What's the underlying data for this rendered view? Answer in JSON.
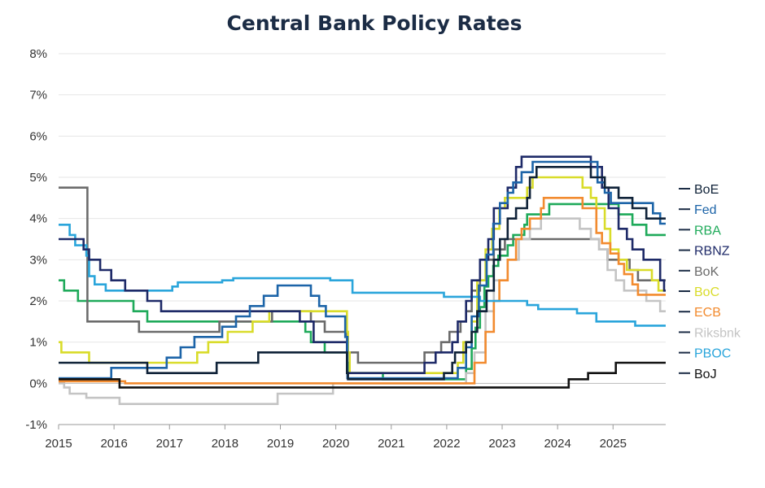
{
  "chart_data": {
    "type": "line",
    "title": "Central Bank Policy Rates",
    "xlabel": "",
    "ylabel": "",
    "xlim": [
      2015.0,
      2025.95
    ],
    "ylim": [
      -1,
      8
    ],
    "yticks": [
      {
        "value": -1,
        "label": "-1%"
      },
      {
        "value": 0,
        "label": "0%"
      },
      {
        "value": 1,
        "label": "1%"
      },
      {
        "value": 2,
        "label": "2%"
      },
      {
        "value": 3,
        "label": "3%"
      },
      {
        "value": 4,
        "label": "4%"
      },
      {
        "value": 5,
        "label": "5%"
      },
      {
        "value": 6,
        "label": "6%"
      },
      {
        "value": 7,
        "label": "7%"
      },
      {
        "value": 8,
        "label": "8%"
      }
    ],
    "xticks": [
      {
        "value": 2015,
        "label": "2015"
      },
      {
        "value": 2016,
        "label": "2016"
      },
      {
        "value": 2017,
        "label": "2017"
      },
      {
        "value": 2018,
        "label": "2018"
      },
      {
        "value": 2019,
        "label": "2019"
      },
      {
        "value": 2020,
        "label": "2020"
      },
      {
        "value": 2021,
        "label": "2021"
      },
      {
        "value": 2022,
        "label": "2022"
      },
      {
        "value": 2023,
        "label": "2023"
      },
      {
        "value": 2024,
        "label": "2024"
      },
      {
        "value": 2025,
        "label": "2025"
      }
    ],
    "grid": "horizontal",
    "legend_position": "right",
    "step": true,
    "series": [
      {
        "name": "BoE",
        "color": "#0f2238",
        "points": [
          [
            2015,
            0.5
          ],
          [
            2016.6,
            0.25
          ],
          [
            2017.85,
            0.5
          ],
          [
            2018.6,
            0.75
          ],
          [
            2020.2,
            0.25
          ],
          [
            2020.22,
            0.1
          ],
          [
            2021.95,
            0.25
          ],
          [
            2022.1,
            0.5
          ],
          [
            2022.15,
            0.75
          ],
          [
            2022.35,
            1.0
          ],
          [
            2022.45,
            1.25
          ],
          [
            2022.55,
            1.75
          ],
          [
            2022.72,
            2.25
          ],
          [
            2022.85,
            3.0
          ],
          [
            2022.96,
            3.5
          ],
          [
            2023.1,
            4.0
          ],
          [
            2023.25,
            4.25
          ],
          [
            2023.45,
            4.5
          ],
          [
            2023.5,
            5.0
          ],
          [
            2023.62,
            5.25
          ],
          [
            2024.6,
            5.0
          ],
          [
            2024.85,
            4.75
          ],
          [
            2025.1,
            4.5
          ],
          [
            2025.35,
            4.25
          ],
          [
            2025.6,
            4.0
          ],
          [
            2025.95,
            4.0
          ]
        ]
      },
      {
        "name": "Fed",
        "color": "#1c64a8",
        "points": [
          [
            2015,
            0.125
          ],
          [
            2015.95,
            0.375
          ],
          [
            2016.95,
            0.625
          ],
          [
            2017.2,
            0.875
          ],
          [
            2017.45,
            1.125
          ],
          [
            2017.95,
            1.375
          ],
          [
            2018.2,
            1.625
          ],
          [
            2018.45,
            1.875
          ],
          [
            2018.7,
            2.125
          ],
          [
            2018.95,
            2.375
          ],
          [
            2019.55,
            2.125
          ],
          [
            2019.7,
            1.875
          ],
          [
            2019.82,
            1.625
          ],
          [
            2020.17,
            1.125
          ],
          [
            2020.21,
            0.125
          ],
          [
            2022.2,
            0.375
          ],
          [
            2022.35,
            0.875
          ],
          [
            2022.45,
            1.625
          ],
          [
            2022.58,
            2.375
          ],
          [
            2022.72,
            3.125
          ],
          [
            2022.84,
            3.875
          ],
          [
            2022.96,
            4.375
          ],
          [
            2023.1,
            4.625
          ],
          [
            2023.2,
            4.875
          ],
          [
            2023.35,
            5.125
          ],
          [
            2023.55,
            5.375
          ],
          [
            2024.72,
            4.875
          ],
          [
            2024.85,
            4.625
          ],
          [
            2024.96,
            4.375
          ],
          [
            2025.72,
            4.125
          ],
          [
            2025.85,
            3.875
          ],
          [
            2025.95,
            3.875
          ]
        ]
      },
      {
        "name": "RBA",
        "color": "#1faa5a",
        "points": [
          [
            2015,
            2.5
          ],
          [
            2015.1,
            2.25
          ],
          [
            2015.35,
            2.0
          ],
          [
            2016.35,
            1.75
          ],
          [
            2016.6,
            1.5
          ],
          [
            2019.45,
            1.25
          ],
          [
            2019.55,
            1.0
          ],
          [
            2019.8,
            0.75
          ],
          [
            2020.2,
            0.5
          ],
          [
            2020.22,
            0.25
          ],
          [
            2020.85,
            0.1
          ],
          [
            2022.35,
            0.35
          ],
          [
            2022.45,
            0.85
          ],
          [
            2022.52,
            1.35
          ],
          [
            2022.6,
            1.85
          ],
          [
            2022.68,
            2.35
          ],
          [
            2022.75,
            2.6
          ],
          [
            2022.84,
            2.85
          ],
          [
            2022.93,
            3.1
          ],
          [
            2023.1,
            3.35
          ],
          [
            2023.2,
            3.6
          ],
          [
            2023.4,
            3.85
          ],
          [
            2023.45,
            4.1
          ],
          [
            2023.85,
            4.35
          ],
          [
            2025.1,
            4.1
          ],
          [
            2025.35,
            3.85
          ],
          [
            2025.6,
            3.6
          ],
          [
            2025.95,
            3.6
          ]
        ]
      },
      {
        "name": "RBNZ",
        "color": "#1e2a68",
        "points": [
          [
            2015,
            3.5
          ],
          [
            2015.45,
            3.25
          ],
          [
            2015.55,
            3.0
          ],
          [
            2015.75,
            2.75
          ],
          [
            2015.95,
            2.5
          ],
          [
            2016.2,
            2.25
          ],
          [
            2016.6,
            2.0
          ],
          [
            2016.85,
            1.75
          ],
          [
            2019.35,
            1.5
          ],
          [
            2019.6,
            1.0
          ],
          [
            2020.2,
            0.25
          ],
          [
            2021.6,
            0.5
          ],
          [
            2021.8,
            0.75
          ],
          [
            2022.1,
            1.0
          ],
          [
            2022.2,
            1.5
          ],
          [
            2022.35,
            2.0
          ],
          [
            2022.45,
            2.5
          ],
          [
            2022.6,
            3.0
          ],
          [
            2022.75,
            3.5
          ],
          [
            2022.85,
            4.25
          ],
          [
            2023.1,
            4.75
          ],
          [
            2023.25,
            5.25
          ],
          [
            2023.35,
            5.5
          ],
          [
            2024.6,
            5.25
          ],
          [
            2024.8,
            4.75
          ],
          [
            2024.92,
            4.25
          ],
          [
            2025.1,
            3.75
          ],
          [
            2025.25,
            3.5
          ],
          [
            2025.35,
            3.25
          ],
          [
            2025.55,
            3.0
          ],
          [
            2025.85,
            2.5
          ],
          [
            2025.92,
            2.25
          ],
          [
            2025.95,
            2.25
          ]
        ]
      },
      {
        "name": "BoK",
        "color": "#6b6b6b",
        "points": [
          [
            2015,
            4.75
          ],
          [
            2015.52,
            1.5
          ],
          [
            2016.45,
            1.25
          ],
          [
            2017.9,
            1.5
          ],
          [
            2018.85,
            1.75
          ],
          [
            2019.55,
            1.5
          ],
          [
            2019.8,
            1.25
          ],
          [
            2020.2,
            0.75
          ],
          [
            2020.4,
            0.5
          ],
          [
            2021.6,
            0.75
          ],
          [
            2021.9,
            1.0
          ],
          [
            2022.05,
            1.25
          ],
          [
            2022.25,
            1.5
          ],
          [
            2022.35,
            1.75
          ],
          [
            2022.45,
            2.25
          ],
          [
            2022.6,
            2.5
          ],
          [
            2022.72,
            3.0
          ],
          [
            2022.85,
            3.25
          ],
          [
            2023.05,
            3.5
          ],
          [
            2024.75,
            3.25
          ],
          [
            2024.9,
            3.0
          ],
          [
            2025.3,
            2.75
          ],
          [
            2025.45,
            2.5
          ],
          [
            2025.95,
            2.5
          ]
        ]
      },
      {
        "name": "BoC",
        "color": "#d9dc2a",
        "points": [
          [
            2015,
            1.0
          ],
          [
            2015.05,
            0.75
          ],
          [
            2015.55,
            0.5
          ],
          [
            2017.5,
            0.75
          ],
          [
            2017.7,
            1.0
          ],
          [
            2018.05,
            1.25
          ],
          [
            2018.5,
            1.5
          ],
          [
            2018.8,
            1.75
          ],
          [
            2020.2,
            1.25
          ],
          [
            2020.22,
            0.75
          ],
          [
            2020.25,
            0.25
          ],
          [
            2022.2,
            0.5
          ],
          [
            2022.3,
            1.0
          ],
          [
            2022.45,
            1.5
          ],
          [
            2022.55,
            2.5
          ],
          [
            2022.7,
            3.25
          ],
          [
            2022.82,
            3.75
          ],
          [
            2022.95,
            4.25
          ],
          [
            2023.05,
            4.5
          ],
          [
            2023.45,
            4.75
          ],
          [
            2023.55,
            5.0
          ],
          [
            2024.45,
            4.75
          ],
          [
            2024.6,
            4.5
          ],
          [
            2024.7,
            4.25
          ],
          [
            2024.85,
            3.75
          ],
          [
            2024.95,
            3.25
          ],
          [
            2025.1,
            3.0
          ],
          [
            2025.25,
            2.75
          ],
          [
            2025.7,
            2.5
          ],
          [
            2025.82,
            2.25
          ],
          [
            2025.95,
            2.25
          ]
        ]
      },
      {
        "name": "ECB",
        "color": "#f28b2f",
        "points": [
          [
            2015,
            0.05
          ],
          [
            2016.2,
            0.0
          ],
          [
            2019.85,
            0.0
          ],
          [
            2022.5,
            0.5
          ],
          [
            2022.7,
            1.25
          ],
          [
            2022.85,
            2.0
          ],
          [
            2022.95,
            2.5
          ],
          [
            2023.1,
            3.0
          ],
          [
            2023.25,
            3.5
          ],
          [
            2023.35,
            3.75
          ],
          [
            2023.5,
            4.0
          ],
          [
            2023.7,
            4.25
          ],
          [
            2023.75,
            4.5
          ],
          [
            2024.45,
            4.25
          ],
          [
            2024.7,
            3.65
          ],
          [
            2024.8,
            3.4
          ],
          [
            2024.95,
            3.15
          ],
          [
            2025.1,
            2.9
          ],
          [
            2025.2,
            2.65
          ],
          [
            2025.35,
            2.4
          ],
          [
            2025.45,
            2.15
          ],
          [
            2025.95,
            2.15
          ]
        ]
      },
      {
        "name": "Riksbnk",
        "color": "#c4c4c4",
        "points": [
          [
            2015,
            0.0
          ],
          [
            2015.1,
            -0.1
          ],
          [
            2015.2,
            -0.25
          ],
          [
            2015.5,
            -0.35
          ],
          [
            2016.1,
            -0.5
          ],
          [
            2018.95,
            -0.25
          ],
          [
            2019.95,
            0.0
          ],
          [
            2022.35,
            0.25
          ],
          [
            2022.5,
            0.75
          ],
          [
            2022.7,
            1.75
          ],
          [
            2022.85,
            2.5
          ],
          [
            2023.1,
            3.0
          ],
          [
            2023.3,
            3.5
          ],
          [
            2023.5,
            3.75
          ],
          [
            2023.7,
            4.0
          ],
          [
            2024.4,
            3.75
          ],
          [
            2024.6,
            3.5
          ],
          [
            2024.75,
            3.25
          ],
          [
            2024.9,
            2.75
          ],
          [
            2025.05,
            2.5
          ],
          [
            2025.2,
            2.25
          ],
          [
            2025.6,
            2.0
          ],
          [
            2025.85,
            1.75
          ],
          [
            2025.95,
            1.75
          ]
        ]
      },
      {
        "name": "PBOC",
        "color": "#2aa5db",
        "points": [
          [
            2015,
            3.85
          ],
          [
            2015.2,
            3.6
          ],
          [
            2015.3,
            3.35
          ],
          [
            2015.5,
            3.1
          ],
          [
            2015.55,
            2.6
          ],
          [
            2015.65,
            2.4
          ],
          [
            2015.85,
            2.25
          ],
          [
            2017.05,
            2.35
          ],
          [
            2017.15,
            2.45
          ],
          [
            2017.95,
            2.5
          ],
          [
            2018.15,
            2.55
          ],
          [
            2019.9,
            2.5
          ],
          [
            2020.3,
            2.2
          ],
          [
            2021.95,
            2.1
          ],
          [
            2022.6,
            2.0
          ],
          [
            2023.45,
            1.9
          ],
          [
            2023.65,
            1.8
          ],
          [
            2024.35,
            1.7
          ],
          [
            2024.7,
            1.5
          ],
          [
            2025.4,
            1.4
          ],
          [
            2025.95,
            1.4
          ]
        ]
      },
      {
        "name": "BoJ",
        "color": "#111111",
        "points": [
          [
            2015,
            0.1
          ],
          [
            2016.1,
            -0.1
          ],
          [
            2024.2,
            0.1
          ],
          [
            2024.55,
            0.25
          ],
          [
            2025.05,
            0.5
          ],
          [
            2025.95,
            0.5
          ]
        ]
      }
    ]
  }
}
